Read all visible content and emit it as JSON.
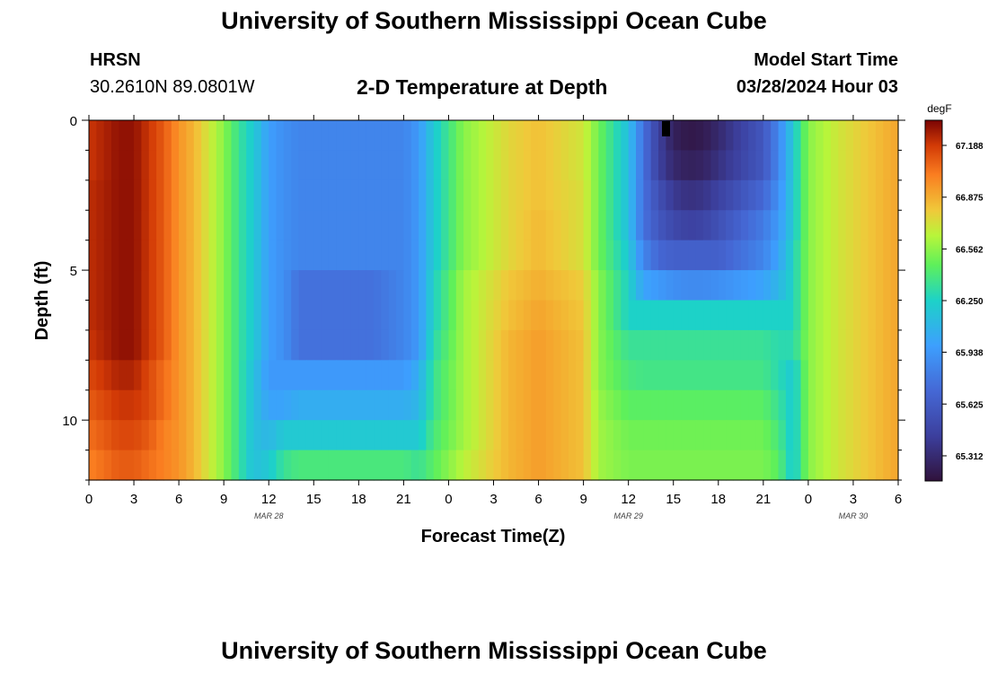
{
  "header": {
    "title": "University of Southern Mississippi Ocean Cube",
    "station": "HRSN",
    "coords": "30.2610N  89.0801W",
    "subtitle": "2-D Temperature at Depth",
    "model_label": "Model Start Time",
    "model_time": "03/28/2024 Hour 03"
  },
  "footer": {
    "title": "University of Southern Mississippi Ocean Cube"
  },
  "chart_data": {
    "type": "heatmap",
    "title": "2-D Temperature at Depth",
    "xlabel": "Forecast Time(Z)",
    "ylabel": "Depth (ft)",
    "x_tick_labels": [
      "0",
      "3",
      "6",
      "9",
      "12",
      "15",
      "18",
      "21",
      "0",
      "3",
      "6",
      "9",
      "12",
      "15",
      "18",
      "21",
      "0",
      "3",
      "6"
    ],
    "x_hours_range": [
      0,
      54
    ],
    "date_labels": [
      {
        "label": "MAR 28",
        "hour": 12
      },
      {
        "label": "MAR 29",
        "hour": 36
      },
      {
        "label": "MAR 30",
        "hour": 51
      }
    ],
    "y_ticks": [
      0,
      5,
      10
    ],
    "ylim": [
      0,
      12
    ],
    "y_inverted": true,
    "colorbar": {
      "unit": "degF",
      "labels": [
        "67.188",
        "66.875",
        "66.562",
        "66.250",
        "65.938",
        "65.625",
        "65.312"
      ],
      "range": [
        65.16,
        67.34
      ]
    },
    "depth_levels_ft": [
      0,
      1,
      2,
      3,
      4,
      5,
      6,
      7,
      8,
      9,
      10,
      11
    ],
    "time_keys_hours": [
      0,
      2,
      3,
      4,
      5,
      6,
      7,
      8,
      9,
      10,
      11,
      12,
      13,
      14,
      19,
      20,
      21,
      22,
      23,
      25,
      28,
      30,
      33,
      34,
      36,
      37,
      38,
      39,
      40,
      41,
      42,
      45,
      46,
      47,
      48,
      50,
      52,
      54
    ],
    "temperature_degF": [
      [
        67.2,
        67.3,
        67.3,
        67.2,
        67.1,
        66.95,
        66.85,
        66.7,
        66.55,
        66.35,
        66.2,
        65.98,
        65.9,
        65.85,
        65.85,
        65.85,
        65.85,
        65.95,
        66.2,
        66.55,
        66.75,
        66.82,
        66.7,
        66.5,
        66.15,
        65.75,
        65.45,
        65.25,
        65.2,
        65.22,
        65.3,
        65.6,
        65.85,
        66.2,
        66.55,
        66.7,
        66.8,
        66.9
      ],
      [
        67.2,
        67.3,
        67.3,
        67.2,
        67.1,
        66.95,
        66.85,
        66.7,
        66.55,
        66.35,
        66.2,
        65.98,
        65.9,
        65.85,
        65.85,
        65.85,
        65.85,
        65.95,
        66.2,
        66.55,
        66.75,
        66.82,
        66.7,
        66.5,
        66.15,
        65.75,
        65.45,
        65.3,
        65.25,
        65.27,
        65.35,
        65.6,
        65.85,
        66.2,
        66.55,
        66.7,
        66.8,
        66.9
      ],
      [
        67.22,
        67.3,
        67.3,
        67.2,
        67.1,
        66.95,
        66.85,
        66.7,
        66.55,
        66.35,
        66.2,
        65.98,
        65.9,
        65.85,
        65.85,
        65.85,
        65.85,
        65.95,
        66.2,
        66.55,
        66.75,
        66.82,
        66.72,
        66.5,
        66.15,
        65.75,
        65.55,
        65.4,
        65.35,
        65.37,
        65.45,
        65.7,
        65.9,
        66.2,
        66.55,
        66.7,
        66.8,
        66.9
      ],
      [
        67.22,
        67.3,
        67.3,
        67.2,
        67.1,
        66.95,
        66.85,
        66.7,
        66.55,
        66.35,
        66.2,
        65.98,
        65.9,
        65.85,
        65.85,
        65.85,
        65.85,
        65.95,
        66.2,
        66.55,
        66.75,
        66.84,
        66.72,
        66.5,
        66.15,
        65.75,
        65.6,
        65.5,
        65.45,
        65.47,
        65.55,
        65.8,
        65.95,
        66.2,
        66.55,
        66.7,
        66.8,
        66.9
      ],
      [
        67.22,
        67.3,
        67.3,
        67.2,
        67.1,
        66.95,
        66.85,
        66.7,
        66.55,
        66.35,
        66.2,
        65.98,
        65.9,
        65.85,
        65.85,
        65.85,
        65.85,
        65.95,
        66.2,
        66.55,
        66.75,
        66.84,
        66.72,
        66.5,
        66.2,
        65.85,
        65.7,
        65.65,
        65.65,
        65.65,
        65.65,
        65.85,
        66.0,
        66.25,
        66.55,
        66.7,
        66.8,
        66.9
      ],
      [
        67.22,
        67.3,
        67.3,
        67.2,
        67.1,
        66.95,
        66.85,
        66.7,
        66.55,
        66.35,
        66.2,
        65.98,
        65.9,
        65.75,
        65.75,
        65.8,
        65.85,
        65.95,
        66.25,
        66.6,
        66.8,
        66.87,
        66.78,
        66.55,
        66.25,
        66.0,
        65.95,
        65.9,
        65.88,
        65.88,
        65.9,
        66.0,
        66.1,
        66.25,
        66.55,
        66.7,
        66.8,
        66.9
      ],
      [
        67.22,
        67.3,
        67.3,
        67.2,
        67.1,
        66.95,
        66.85,
        66.7,
        66.55,
        66.35,
        66.2,
        65.98,
        65.9,
        65.75,
        65.75,
        65.8,
        65.85,
        65.95,
        66.25,
        66.6,
        66.82,
        66.9,
        66.8,
        66.55,
        66.25,
        66.25,
        66.25,
        66.25,
        66.25,
        66.25,
        66.25,
        66.25,
        66.25,
        66.25,
        66.55,
        66.7,
        66.8,
        66.9
      ],
      [
        67.2,
        67.3,
        67.3,
        67.2,
        67.1,
        66.95,
        66.85,
        66.7,
        66.55,
        66.35,
        66.2,
        65.98,
        65.9,
        65.75,
        65.75,
        65.8,
        65.85,
        65.95,
        66.3,
        66.6,
        66.85,
        66.92,
        66.82,
        66.55,
        66.35,
        66.35,
        66.35,
        66.35,
        66.35,
        66.35,
        66.35,
        66.35,
        66.3,
        66.3,
        66.55,
        66.7,
        66.8,
        66.9
      ],
      [
        67.15,
        67.25,
        67.25,
        67.15,
        67.05,
        66.95,
        66.85,
        66.7,
        66.55,
        66.35,
        66.15,
        65.95,
        65.95,
        65.95,
        65.95,
        65.95,
        65.95,
        66.05,
        66.35,
        66.6,
        66.85,
        66.92,
        66.82,
        66.55,
        66.4,
        66.38,
        66.38,
        66.38,
        66.38,
        66.38,
        66.38,
        66.38,
        66.3,
        66.2,
        66.55,
        66.7,
        66.8,
        66.9
      ],
      [
        67.1,
        67.2,
        67.2,
        67.15,
        67.05,
        66.95,
        66.85,
        66.7,
        66.55,
        66.35,
        66.15,
        66.0,
        66.0,
        66.05,
        66.05,
        66.05,
        66.05,
        66.1,
        66.35,
        66.6,
        66.85,
        66.92,
        66.82,
        66.58,
        66.45,
        66.45,
        66.45,
        66.45,
        66.45,
        66.45,
        66.45,
        66.45,
        66.35,
        66.2,
        66.55,
        66.7,
        66.8,
        66.9
      ],
      [
        67.05,
        67.15,
        67.15,
        67.1,
        67.0,
        66.95,
        66.85,
        66.7,
        66.55,
        66.35,
        66.15,
        66.1,
        66.2,
        66.2,
        66.2,
        66.2,
        66.2,
        66.2,
        66.4,
        66.6,
        66.85,
        66.92,
        66.82,
        66.6,
        66.5,
        66.5,
        66.5,
        66.5,
        66.5,
        66.5,
        66.5,
        66.5,
        66.4,
        66.2,
        66.55,
        66.7,
        66.8,
        66.9
      ],
      [
        67.0,
        67.1,
        67.1,
        67.05,
        67.0,
        66.95,
        66.85,
        66.7,
        66.55,
        66.35,
        66.15,
        66.2,
        66.35,
        66.4,
        66.4,
        66.4,
        66.4,
        66.35,
        66.45,
        66.65,
        66.85,
        66.92,
        66.82,
        66.6,
        66.52,
        66.52,
        66.52,
        66.52,
        66.52,
        66.52,
        66.52,
        66.52,
        66.45,
        66.2,
        66.55,
        66.7,
        66.8,
        66.9
      ]
    ]
  }
}
